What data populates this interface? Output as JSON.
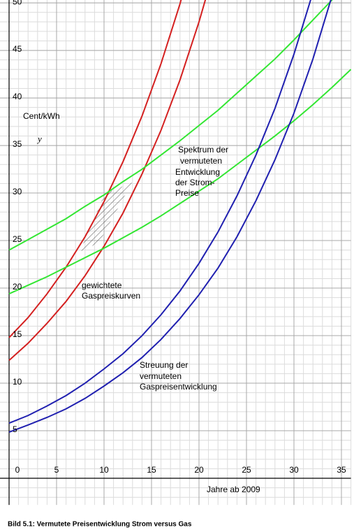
{
  "chart_data": {
    "type": "line",
    "title": "Bild 5.1: Vermutete Preisentwicklung Strom versus Gas",
    "x_label": "Jahre ab 2009",
    "y_label": "Cent/kWh",
    "y_symbol": "y",
    "x": [
      0,
      2,
      4,
      6,
      8,
      10,
      12,
      14,
      16,
      18,
      20,
      22,
      24,
      26,
      28,
      30,
      32,
      34,
      36
    ],
    "series": [
      {
        "color": "#d42020",
        "values": [
          14.8,
          16.9,
          19.4,
          22.2,
          25.4,
          29.1,
          33.3,
          38.1,
          43.6,
          49.9,
          57.2,
          null,
          null,
          null,
          null,
          null,
          null,
          null,
          null
        ]
      },
      {
        "color": "#d42020",
        "values": [
          12.4,
          14.2,
          16.3,
          18.6,
          21.3,
          24.4,
          27.9,
          32.0,
          36.6,
          41.9,
          48.0,
          54.9,
          null,
          null,
          null,
          null,
          null,
          null,
          null
        ]
      },
      {
        "color": "#33e633",
        "values": [
          24,
          25.1,
          26.2,
          27.3,
          28.6,
          29.8,
          31.2,
          32.5,
          34.0,
          35.5,
          37.1,
          38.7,
          40.5,
          42.3,
          44.1,
          46.1,
          48.2,
          50.3,
          52.5
        ]
      },
      {
        "color": "#33e633",
        "values": [
          19.4,
          20.3,
          21.2,
          22.2,
          23.2,
          24.2,
          25.3,
          26.4,
          27.6,
          28.9,
          30.2,
          31.5,
          33.0,
          34.5,
          36.0,
          37.6,
          39.3,
          41.1,
          43.0
        ]
      },
      {
        "color": "#2020b0",
        "values": [
          5.8,
          6.6,
          7.6,
          8.7,
          10.0,
          11.5,
          13.1,
          15.0,
          17.2,
          19.7,
          22.6,
          25.9,
          29.7,
          34.0,
          38.9,
          44.6,
          51.1,
          null,
          null
        ]
      },
      {
        "color": "#2020b0",
        "values": [
          4.85,
          5.6,
          6.4,
          7.3,
          8.4,
          9.7,
          11.1,
          12.7,
          14.6,
          16.8,
          19.3,
          22.1,
          25.4,
          29.2,
          33.5,
          38.4,
          44.1,
          50.7,
          null
        ]
      }
    ],
    "xlim": [
      -1,
      36
    ],
    "ylim": [
      -2.8,
      50.3
    ],
    "xticks": [
      0,
      5,
      10,
      15,
      20,
      25,
      30,
      35
    ],
    "yticks": [
      5,
      10,
      15,
      20,
      25,
      30,
      35,
      40,
      45,
      50
    ],
    "grid": true,
    "minor_grid": true,
    "annotations": [
      {
        "lines": [
          "Spektrum der",
          "vermuteten",
          "Entwicklung",
          "der Strom-",
          "Preise"
        ]
      },
      {
        "lines": [
          "gewichtete",
          "Gaspreiskurven"
        ]
      },
      {
        "lines": [
          "Streuung der",
          "vermuteten",
          "Gaspreisentwicklung"
        ]
      }
    ]
  }
}
